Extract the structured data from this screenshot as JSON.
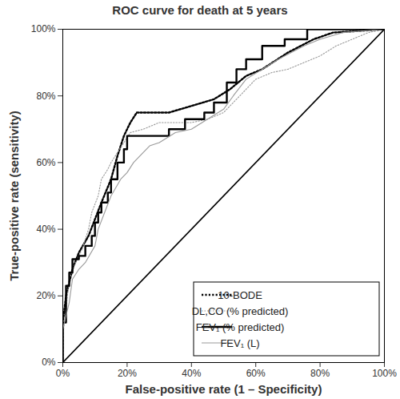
{
  "chart_data": {
    "type": "line",
    "title": "ROC curve for death at 5 years",
    "x_label": "False-positive rate (1 – Specificity)",
    "y_label": "True-positive rate (sensitivity)",
    "xlim": [
      0,
      100
    ],
    "ylim": [
      0,
      100
    ],
    "xticks": [
      {
        "value": 0,
        "label": "0%"
      },
      {
        "value": 20,
        "label": "20%"
      },
      {
        "value": 40,
        "label": "40%"
      },
      {
        "value": 60,
        "label": "60%"
      },
      {
        "value": 80,
        "label": "80%"
      },
      {
        "value": 100,
        "label": "100%"
      }
    ],
    "yticks": [
      {
        "value": 0,
        "label": "0%"
      },
      {
        "value": 20,
        "label": "20%"
      },
      {
        "value": 40,
        "label": "40%"
      },
      {
        "value": 60,
        "label": "60%"
      },
      {
        "value": 80,
        "label": "80%"
      },
      {
        "value": 100,
        "label": "100%"
      }
    ],
    "grid": false,
    "legend": "bottom-right",
    "series": [
      {
        "name": "10-BODE",
        "color": "#000000",
        "line_style": "dotted",
        "x": [
          0,
          0,
          1,
          2,
          3,
          5,
          8,
          10,
          12,
          15,
          17,
          19,
          21,
          23,
          28,
          33,
          40,
          47,
          52,
          57,
          62,
          70,
          78,
          84,
          100
        ],
        "values": [
          0,
          12,
          20,
          24,
          28,
          33,
          38,
          43,
          48,
          55,
          62,
          68,
          72,
          75,
          75,
          75,
          77,
          79,
          82,
          86,
          88,
          93,
          97,
          99,
          100
        ]
      },
      {
        "name": "DL,CO (% predicted)",
        "color": "#999999",
        "line_style": "dotted",
        "x": [
          0,
          0,
          1,
          2,
          4,
          6,
          8,
          9,
          11,
          12,
          14,
          15,
          17,
          19,
          21,
          25,
          30,
          35,
          40,
          45,
          50,
          55,
          60,
          65,
          70,
          75,
          80,
          85,
          90,
          95,
          100
        ],
        "values": [
          0,
          8,
          16,
          25,
          30,
          34,
          40,
          45,
          50,
          55,
          58,
          60,
          63,
          66,
          69,
          70,
          72,
          72,
          72,
          73,
          75,
          80,
          85,
          87,
          88,
          90,
          92,
          95,
          97,
          99,
          100
        ]
      },
      {
        "name": "FEV₁ (% predicted)",
        "color": "#000000",
        "line_style": "solid",
        "x": [
          0,
          0,
          1,
          1,
          2,
          2,
          3,
          3,
          5,
          5,
          7,
          7,
          9,
          9,
          10,
          10,
          11,
          11,
          12,
          12,
          14,
          14,
          15,
          15,
          17,
          17,
          19,
          19,
          20,
          20,
          33,
          33,
          38,
          38,
          44,
          44,
          47,
          47,
          51,
          51,
          54,
          54,
          57,
          57,
          62,
          62,
          69,
          69,
          76,
          76,
          100
        ],
        "values": [
          0,
          12,
          12,
          23,
          23,
          27,
          27,
          31,
          31,
          32,
          32,
          35,
          35,
          38,
          38,
          42,
          42,
          45,
          45,
          48,
          48,
          51,
          51,
          55,
          55,
          60,
          60,
          64,
          64,
          68,
          68,
          70,
          70,
          73,
          73,
          75,
          75,
          78,
          78,
          84,
          84,
          88,
          88,
          91,
          91,
          95,
          95,
          97,
          97,
          100,
          100
        ]
      },
      {
        "name": "FEV₁ (L)",
        "color": "#999999",
        "line_style": "solid",
        "x": [
          0,
          0,
          2,
          3,
          5,
          7,
          10,
          11,
          13,
          15,
          18,
          20,
          22,
          25,
          27,
          30,
          35,
          40,
          45,
          50,
          53,
          57,
          62,
          67,
          75,
          80,
          87,
          100
        ],
        "values": [
          0,
          10,
          18,
          25,
          28,
          30,
          35,
          40,
          45,
          50,
          55,
          57,
          60,
          63,
          65,
          66,
          69,
          70,
          73,
          76,
          80,
          85,
          88,
          91,
          95,
          97,
          99,
          100
        ]
      },
      {
        "color": "#000000",
        "line_style": "solid",
        "x": [
          0,
          100
        ],
        "values": [
          0,
          100
        ]
      }
    ]
  }
}
